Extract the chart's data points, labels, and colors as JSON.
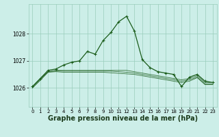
{
  "bg_color": "#cceee8",
  "grid_color": "#99ccbb",
  "line_color": "#1a5c1a",
  "title": "Graphe pression niveau de la mer (hPa)",
  "title_fontsize": 7,
  "ylabel_ticks": [
    1026,
    1027,
    1028
  ],
  "ylim": [
    1025.3,
    1029.1
  ],
  "xlim": [
    -0.5,
    23.5
  ],
  "xticks": [
    0,
    1,
    2,
    3,
    4,
    5,
    6,
    7,
    8,
    9,
    10,
    11,
    12,
    13,
    14,
    15,
    16,
    17,
    18,
    19,
    20,
    21,
    22,
    23
  ],
  "main_series": [
    1026.05,
    1026.35,
    1026.65,
    1026.7,
    1026.85,
    1026.95,
    1027.0,
    1027.35,
    1027.25,
    1027.75,
    1028.05,
    1028.45,
    1028.65,
    1028.1,
    1027.05,
    1026.75,
    1026.6,
    1026.55,
    1026.5,
    1026.05,
    1026.4,
    1026.5,
    1026.25,
    1026.2
  ],
  "flat_series": [
    [
      1026.05,
      1026.35,
      1026.6,
      1026.65,
      1026.65,
      1026.65,
      1026.65,
      1026.65,
      1026.65,
      1026.65,
      1026.65,
      1026.65,
      1026.65,
      1026.6,
      1026.55,
      1026.5,
      1026.45,
      1026.4,
      1026.35,
      1026.3,
      1026.35,
      1026.45,
      1026.2,
      1026.2
    ],
    [
      1026.0,
      1026.3,
      1026.6,
      1026.63,
      1026.62,
      1026.62,
      1026.62,
      1026.62,
      1026.62,
      1026.62,
      1026.62,
      1026.6,
      1026.58,
      1026.55,
      1026.5,
      1026.45,
      1026.4,
      1026.35,
      1026.3,
      1026.25,
      1026.3,
      1026.4,
      1026.15,
      1026.15
    ],
    [
      1026.0,
      1026.28,
      1026.58,
      1026.6,
      1026.58,
      1026.58,
      1026.58,
      1026.58,
      1026.58,
      1026.58,
      1026.56,
      1026.54,
      1026.52,
      1026.5,
      1026.45,
      1026.4,
      1026.35,
      1026.3,
      1026.25,
      1026.2,
      1026.25,
      1026.38,
      1026.12,
      1026.12
    ]
  ]
}
